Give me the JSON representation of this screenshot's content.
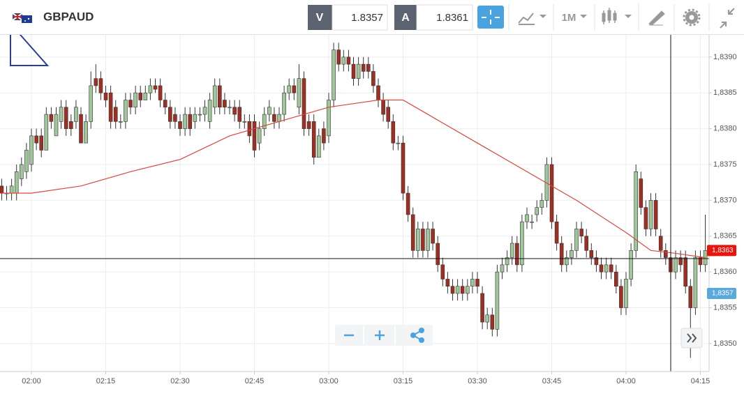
{
  "toolbar": {
    "symbol": "GBPAUD",
    "bid_label": "V",
    "bid": "1.8357",
    "ask_label": "A",
    "ask": "1.8361",
    "timeframe": "1M"
  },
  "chart_data": {
    "type": "candlestick",
    "x": [
      114,
      115,
      116,
      117,
      118,
      119,
      120,
      121,
      122,
      123,
      124,
      125,
      126,
      127,
      128,
      129,
      130,
      131,
      132,
      133,
      134,
      135,
      136,
      137,
      138,
      139,
      140,
      141,
      142,
      143,
      144,
      145,
      146,
      147,
      148,
      149,
      150,
      151,
      152,
      153,
      154,
      155,
      156,
      157,
      158,
      159,
      160,
      161,
      162,
      163,
      164,
      165,
      166,
      167,
      168,
      169,
      170,
      171,
      172,
      173,
      174,
      175,
      176,
      177,
      178,
      179,
      180,
      181,
      182,
      183,
      184,
      185,
      186,
      187,
      188,
      189,
      190,
      191,
      192,
      193,
      194,
      195,
      196,
      197,
      198,
      199,
      200,
      201,
      202,
      203,
      204,
      205,
      206,
      207,
      208,
      209,
      210,
      211,
      212,
      213,
      214,
      215,
      216,
      217,
      218,
      219,
      220,
      221,
      222,
      223,
      224,
      225,
      226,
      227,
      228,
      229,
      230,
      231,
      232,
      233,
      234,
      235,
      236,
      237,
      238,
      239,
      240,
      241,
      242,
      243,
      244,
      245,
      246,
      247,
      248,
      249,
      250,
      251,
      252,
      253,
      254,
      255,
      256
    ],
    "open": [
      1.8372,
      1.8371,
      1.8371,
      1.8371,
      1.8373,
      1.8374,
      1.8375,
      1.8379,
      1.8379,
      1.8377,
      1.8382,
      1.8379,
      1.8381,
      1.8383,
      1.8381,
      1.8381,
      1.8382,
      1.8378,
      1.8381,
      1.8387,
      1.8387,
      1.8385,
      1.8385,
      1.8383,
      1.8381,
      1.8381,
      1.8384,
      1.8383,
      1.8385,
      1.8384,
      1.8385,
      1.8386,
      1.8386,
      1.8384,
      1.8383,
      1.8382,
      1.8381,
      1.838,
      1.8382,
      1.8381,
      1.8382,
      1.8382,
      1.8381,
      1.8383,
      1.8386,
      1.8384,
      1.8383,
      1.8383,
      1.8383,
      1.8381,
      1.8381,
      1.8381,
      1.8378,
      1.838,
      1.8382,
      1.8382,
      1.8381,
      1.8382,
      1.8385,
      1.8386,
      1.8383,
      1.8387,
      1.8381,
      1.8381,
      1.8376,
      1.838,
      1.8379,
      1.8384,
      1.8391,
      1.8389,
      1.839,
      1.8389,
      1.8387,
      1.8389,
      1.8389,
      1.8388,
      1.8386,
      1.8384,
      1.8383,
      1.8381,
      1.8378,
      1.8378,
      1.8371,
      1.8368,
      1.8363,
      1.8366,
      1.8363,
      1.8366,
      1.8364,
      1.8361,
      1.8359,
      1.8358,
      1.8357,
      1.8358,
      1.8357,
      1.8358,
      1.8359,
      1.8357,
      1.8353,
      1.8354,
      1.8352,
      1.836,
      1.8361,
      1.8362,
      1.8364,
      1.8361,
      1.8367,
      1.8367,
      1.8368,
      1.8369,
      1.837,
      1.8375,
      1.8367,
      1.8364,
      1.8361,
      1.8362,
      1.8363,
      1.8366,
      1.8365,
      1.8363,
      1.8362,
      1.8361,
      1.836,
      1.8361,
      1.836,
      1.8358,
      1.8355,
      1.8359,
      1.8363,
      1.8373,
      1.8369,
      1.8366,
      1.837,
      1.8365,
      1.8363,
      1.8362,
      1.836,
      1.8362,
      1.8362,
      1.8358,
      1.8355,
      1.8362,
      1.8361
    ],
    "high": [
      1.8373,
      1.8372,
      1.8373,
      1.8375,
      1.8376,
      1.8378,
      1.838,
      1.838,
      1.838,
      1.8383,
      1.8383,
      1.8383,
      1.8384,
      1.8384,
      1.8382,
      1.8384,
      1.8383,
      1.8382,
      1.8388,
      1.8389,
      1.8388,
      1.8386,
      1.8386,
      1.8384,
      1.8382,
      1.8385,
      1.8385,
      1.8386,
      1.8386,
      1.8386,
      1.8387,
      1.8387,
      1.8387,
      1.8385,
      1.8384,
      1.8383,
      1.8382,
      1.8383,
      1.8383,
      1.8383,
      1.8383,
      1.8384,
      1.8385,
      1.8387,
      1.8387,
      1.8385,
      1.8384,
      1.8384,
      1.8384,
      1.8382,
      1.8382,
      1.8382,
      1.8381,
      1.8383,
      1.8384,
      1.8383,
      1.8383,
      1.8386,
      1.8387,
      1.8387,
      1.8389,
      1.8388,
      1.8382,
      1.8382,
      1.838,
      1.8381,
      1.8385,
      1.8392,
      1.8392,
      1.8391,
      1.8391,
      1.839,
      1.839,
      1.839,
      1.839,
      1.8389,
      1.8387,
      1.8385,
      1.8384,
      1.8382,
      1.8379,
      1.8379,
      1.8372,
      1.8369,
      1.8367,
      1.8367,
      1.8367,
      1.8367,
      1.8365,
      1.8362,
      1.836,
      1.8359,
      1.8359,
      1.8359,
      1.8359,
      1.836,
      1.836,
      1.8358,
      1.8355,
      1.8355,
      1.8361,
      1.8362,
      1.8363,
      1.8365,
      1.8365,
      1.8368,
      1.8369,
      1.8368,
      1.837,
      1.8371,
      1.8376,
      1.8376,
      1.8368,
      1.8365,
      1.8363,
      1.8364,
      1.8367,
      1.8367,
      1.8366,
      1.8364,
      1.8363,
      1.8362,
      1.8362,
      1.8362,
      1.8361,
      1.8359,
      1.836,
      1.8364,
      1.8375,
      1.8374,
      1.837,
      1.8371,
      1.8371,
      1.8366,
      1.8364,
      1.8363,
      1.8363,
      1.8363,
      1.8363,
      1.8359,
      1.8363,
      1.8363,
      1.8368
    ],
    "low": [
      1.837,
      1.837,
      1.837,
      1.837,
      1.8372,
      1.8373,
      1.8374,
      1.8377,
      1.8376,
      1.8377,
      1.838,
      1.8379,
      1.838,
      1.8379,
      1.8379,
      1.838,
      1.8378,
      1.8378,
      1.838,
      1.8385,
      1.8384,
      1.8383,
      1.838,
      1.838,
      1.838,
      1.838,
      1.8382,
      1.8382,
      1.8383,
      1.8384,
      1.8384,
      1.8385,
      1.8383,
      1.8382,
      1.838,
      1.838,
      1.8379,
      1.8379,
      1.8379,
      1.838,
      1.8381,
      1.8381,
      1.838,
      1.8382,
      1.8382,
      1.8382,
      1.8382,
      1.8381,
      1.838,
      1.838,
      1.8378,
      1.8376,
      1.8377,
      1.8379,
      1.8381,
      1.838,
      1.838,
      1.8381,
      1.8384,
      1.8384,
      1.8382,
      1.8379,
      1.8379,
      1.8375,
      1.8376,
      1.8377,
      1.8378,
      1.8383,
      1.8388,
      1.8388,
      1.8388,
      1.8386,
      1.8386,
      1.8387,
      1.8387,
      1.8385,
      1.8383,
      1.8381,
      1.838,
      1.8377,
      1.8377,
      1.837,
      1.8367,
      1.8362,
      1.8362,
      1.8362,
      1.8362,
      1.8363,
      1.836,
      1.8358,
      1.8357,
      1.8356,
      1.8356,
      1.8356,
      1.8356,
      1.8357,
      1.8357,
      1.8352,
      1.8352,
      1.8351,
      1.8351,
      1.8359,
      1.836,
      1.8361,
      1.836,
      1.836,
      1.8366,
      1.8366,
      1.8367,
      1.8368,
      1.8369,
      1.8366,
      1.8363,
      1.836,
      1.836,
      1.8361,
      1.8362,
      1.8364,
      1.8362,
      1.8361,
      1.836,
      1.8359,
      1.8359,
      1.8359,
      1.8357,
      1.8354,
      1.8354,
      1.8358,
      1.8362,
      1.8368,
      1.8365,
      1.8365,
      1.8365,
      1.8362,
      1.8361,
      1.8359,
      1.8359,
      1.836,
      1.8357,
      1.8348,
      1.8354,
      1.836,
      1.836
    ],
    "close": [
      1.8371,
      1.8371,
      1.8372,
      1.8374,
      1.8375,
      1.8377,
      1.8379,
      1.8378,
      1.8377,
      1.8382,
      1.8381,
      1.8382,
      1.8383,
      1.838,
      1.838,
      1.8383,
      1.8378,
      1.8381,
      1.8386,
      1.8386,
      1.8385,
      1.8384,
      1.8381,
      1.8381,
      1.8381,
      1.8384,
      1.8383,
      1.8385,
      1.8384,
      1.8385,
      1.8386,
      1.83855,
      1.8384,
      1.8383,
      1.8381,
      1.8381,
      1.838,
      1.8382,
      1.838,
      1.8382,
      1.8382,
      1.8383,
      1.8384,
      1.8386,
      1.8383,
      1.8383,
      1.8383,
      1.8382,
      1.8381,
      1.8381,
      1.8379,
      1.8377,
      1.838,
      1.8382,
      1.8383,
      1.8381,
      1.8382,
      1.8385,
      1.8386,
      1.8385,
      1.8387,
      1.838,
      1.838,
      1.8376,
      1.8379,
      1.8378,
      1.8384,
      1.8391,
      1.8389,
      1.839,
      1.8389,
      1.8387,
      1.8389,
      1.8388,
      1.8388,
      1.8386,
      1.8384,
      1.8382,
      1.8381,
      1.8378,
      1.8378,
      1.8371,
      1.8368,
      1.8363,
      1.8366,
      1.8363,
      1.8366,
      1.8364,
      1.8361,
      1.8359,
      1.8358,
      1.8357,
      1.8358,
      1.8357,
      1.8358,
      1.8359,
      1.8358,
      1.8353,
      1.8354,
      1.8352,
      1.836,
      1.8361,
      1.8362,
      1.8364,
      1.8361,
      1.8367,
      1.8368,
      1.8367,
      1.8369,
      1.837,
      1.8375,
      1.8367,
      1.8364,
      1.8361,
      1.8362,
      1.8363,
      1.8366,
      1.8365,
      1.8363,
      1.8362,
      1.8361,
      1.836,
      1.8361,
      1.836,
      1.8358,
      1.8355,
      1.8359,
      1.8363,
      1.8374,
      1.8369,
      1.8366,
      1.837,
      1.8366,
      1.8363,
      1.8362,
      1.836,
      1.8362,
      1.8361,
      1.8358,
      1.8355,
      1.8362,
      1.8361,
      1.8363
    ],
    "up_color": "#9fc79a",
    "down_color": "#9e2f22",
    "moving_average": {
      "color": "#d8473c",
      "x": [
        114,
        120,
        130,
        140,
        150,
        160,
        170,
        180,
        190,
        195,
        200,
        210,
        220,
        230,
        240,
        245,
        250,
        256
      ],
      "values": [
        1.8371,
        1.8371,
        1.8372,
        1.8374,
        1.83757,
        1.8379,
        1.8381,
        1.8383,
        1.8384,
        1.8384,
        1.8382,
        1.8378,
        1.8374,
        1.837,
        1.83655,
        1.8363,
        1.83626,
        1.8362
      ]
    },
    "price_tags": [
      {
        "value": 1.8363,
        "label": "1,8363",
        "color": "#e8150f"
      },
      {
        "value": 1.8357,
        "label": "1,8357",
        "color": "#58a9dc"
      }
    ],
    "xlim": [
      113.66,
      256.76
    ],
    "ylim": [
      1.83461,
      1.83931
    ],
    "xticks": [
      {
        "value": 120,
        "label": "02:00"
      },
      {
        "value": 135,
        "label": "02:15"
      },
      {
        "value": 150,
        "label": "02:30"
      },
      {
        "value": 165,
        "label": "02:45"
      },
      {
        "value": 180,
        "label": "03:00"
      },
      {
        "value": 195,
        "label": "03:15"
      },
      {
        "value": 210,
        "label": "03:30"
      },
      {
        "value": 225,
        "label": "03:45"
      },
      {
        "value": 240,
        "label": "04:00"
      },
      {
        "value": 255,
        "label": "04:15"
      }
    ],
    "yticks": [
      {
        "value": 1.835,
        "label": "1,8350"
      },
      {
        "value": 1.8355,
        "label": "1,8355"
      },
      {
        "value": 1.836,
        "label": "1,8360"
      },
      {
        "value": 1.8365,
        "label": "1,8365"
      },
      {
        "value": 1.837,
        "label": "1,8370"
      },
      {
        "value": 1.8375,
        "label": "1,8375"
      },
      {
        "value": 1.838,
        "label": "1,8380"
      },
      {
        "value": 1.8385,
        "label": "1,8385"
      },
      {
        "value": 1.839,
        "label": "1,8390"
      }
    ],
    "grid": true
  }
}
